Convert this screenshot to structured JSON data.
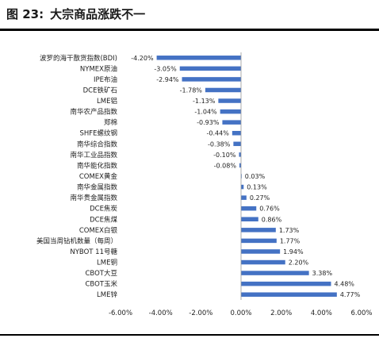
{
  "title": {
    "prefix": "图 23:",
    "text": "大宗商品涨跌不一"
  },
  "chart_data": {
    "type": "bar",
    "orientation": "horizontal",
    "categories": [
      "波罗的海干散货指数(BDI)",
      "NYMEX原油",
      "IPE布油",
      "DCE铁矿石",
      "LME铝",
      "南华农产品指数",
      "郑棉",
      "SHFE螺纹钢",
      "南华综合指数",
      "南华工业品指数",
      "南华能化指数",
      "COMEX黄金",
      "南华金属指数",
      "南华贵金属指数",
      "DCE焦炭",
      "DCE焦煤",
      "COMEX白银",
      "美国当周钻机数量（每周）",
      "NYBOT 11号糖",
      "LME铜",
      "CBOT大豆",
      "CBOT玉米",
      "LME锌"
    ],
    "values": [
      -4.2,
      -3.05,
      -2.94,
      -1.78,
      -1.13,
      -1.04,
      -0.93,
      -0.44,
      -0.38,
      -0.1,
      -0.08,
      0.03,
      0.13,
      0.27,
      0.76,
      0.86,
      1.73,
      1.77,
      1.94,
      2.2,
      3.38,
      4.48,
      4.77
    ],
    "data_labels": [
      "-4.20%",
      "-3.05%",
      "-2.94%",
      "-1.78%",
      "-1.13%",
      "-1.04%",
      "-0.93%",
      "-0.44%",
      "-0.38%",
      "-0.10%",
      "-0.08%",
      "0.03%",
      "0.13%",
      "0.27%",
      "0.76%",
      "0.86%",
      "1.73%",
      "1.77%",
      "1.94%",
      "2.20%",
      "3.38%",
      "4.48%",
      "4.77%"
    ],
    "xticks": [
      "-6.00%",
      "-4.00%",
      "-2.00%",
      "0.00%",
      "2.00%",
      "4.00%",
      "6.00%"
    ],
    "xlim": [
      -6,
      6
    ],
    "grid": false,
    "bar_color": "#4472C4"
  }
}
